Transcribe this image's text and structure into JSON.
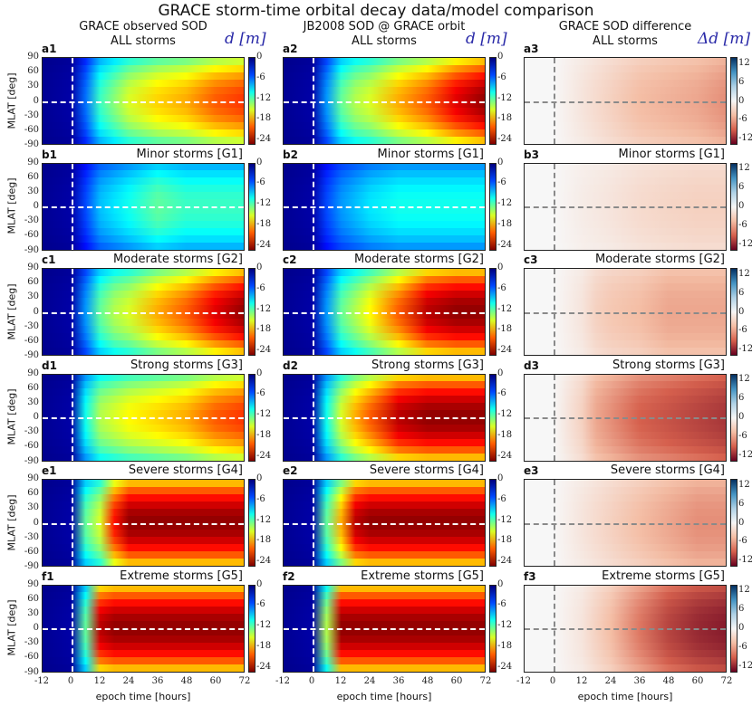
{
  "title": "GRACE storm-time orbital decay data/model comparison",
  "columns": [
    {
      "header1": "GRACE observed SOD",
      "header2": "ALL storms",
      "unit": "d [m]"
    },
    {
      "header1": "JB2008 SOD @ GRACE orbit",
      "header2": "ALL storms",
      "unit": "d [m]"
    },
    {
      "header1": "GRACE SOD difference",
      "header2": "ALL storms",
      "unit": "Δd [m]"
    }
  ],
  "rows": [
    {
      "letter": "a",
      "subtitle": ""
    },
    {
      "letter": "b",
      "subtitle": "Minor storms [G1]"
    },
    {
      "letter": "c",
      "subtitle": "Moderate storms [G2]"
    },
    {
      "letter": "d",
      "subtitle": "Strong storms [G3]"
    },
    {
      "letter": "e",
      "subtitle": "Severe storms [G4]"
    },
    {
      "letter": "f",
      "subtitle": "Extreme storms [G5]"
    }
  ],
  "ylabel": "MLAT [deg]",
  "xlabel": "epoch time [hours]",
  "chart_data": {
    "type": "heatmap",
    "title": "GRACE storm-time orbital decay data/model comparison",
    "xlim": [
      -12,
      72
    ],
    "ylim": [
      -90,
      90
    ],
    "xticks": [
      "-12",
      "0",
      "12",
      "24",
      "36",
      "48",
      "60",
      "72"
    ],
    "yticks": [
      "90",
      "60",
      "30",
      "0",
      "-30",
      "-60",
      "-90"
    ],
    "cbar_ticks_d": [
      "0",
      "-6",
      "-12",
      "-18",
      "-24"
    ],
    "cbar_range_d": [
      -25.5,
      0
    ],
    "cbar_ticks_diff": [
      "12",
      "6",
      "0",
      "-6",
      "-12"
    ],
    "cbar_range_diff": [
      -14,
      14
    ],
    "times": [
      -12,
      0,
      6,
      12,
      18,
      24,
      36,
      48,
      60,
      72
    ],
    "equatorial_profiles": {
      "a1": [
        -0.5,
        -1,
        -6,
        -11,
        -13,
        -15,
        -17,
        -18,
        -20,
        -21
      ],
      "a2": [
        -0.5,
        -1,
        -7,
        -12,
        -14,
        -15,
        -18,
        -20,
        -23,
        -25
      ],
      "a3": [
        0,
        0,
        -0.5,
        -1,
        -1.5,
        -2,
        -3,
        -3.5,
        -4,
        -5
      ],
      "b1": [
        -0.5,
        -1,
        -5,
        -8,
        -9,
        -10,
        -12,
        -11,
        -11,
        -11
      ],
      "b2": [
        -0.5,
        -1,
        -5,
        -7,
        -8,
        -9,
        -10,
        -10,
        -10,
        -10
      ],
      "b3": [
        0,
        0,
        -0.3,
        -0.6,
        -0.8,
        -1,
        -1.5,
        -1.8,
        -2,
        -2
      ],
      "c1": [
        -0.5,
        -1,
        -7,
        -12,
        -14,
        -15,
        -18,
        -20,
        -23,
        -25
      ],
      "c2": [
        -0.5,
        -1,
        -7,
        -12,
        -14,
        -16,
        -20,
        -24,
        -25,
        -25
      ],
      "c3": [
        0,
        0,
        -0.5,
        -1,
        -2,
        -2.5,
        -3,
        -4,
        -4,
        -4
      ],
      "d1": [
        -0.5,
        -1,
        -10,
        -14,
        -15,
        -16,
        -17,
        -18,
        -20,
        -21
      ],
      "d2": [
        -0.5,
        -1,
        -10,
        -15,
        -18,
        -20,
        -24,
        -25,
        -25,
        -25
      ],
      "d3": [
        0,
        0,
        -1,
        -2,
        -4,
        -5,
        -7,
        -8,
        -9,
        -10
      ],
      "e1": [
        -0.5,
        -1,
        -12,
        -15,
        -22,
        -25,
        -25,
        -25,
        -25,
        -25
      ],
      "e2": [
        -0.5,
        -1,
        -12,
        -18,
        -24,
        -25,
        -25,
        -25,
        -25,
        -25
      ],
      "e3": [
        0,
        0,
        -0.5,
        -1,
        -1.5,
        -2,
        -3,
        -4,
        -5,
        -5
      ],
      "f1": [
        -0.5,
        -1,
        -12,
        -24,
        -25,
        -25,
        -25,
        -25,
        -25,
        -25
      ],
      "f2": [
        -0.5,
        -1,
        -14,
        -25,
        -25,
        -25,
        -25,
        -25,
        -25,
        -25
      ],
      "f3": [
        0,
        0,
        -0.5,
        -1,
        -2,
        -3,
        -6,
        -9,
        -11,
        -12
      ]
    }
  }
}
